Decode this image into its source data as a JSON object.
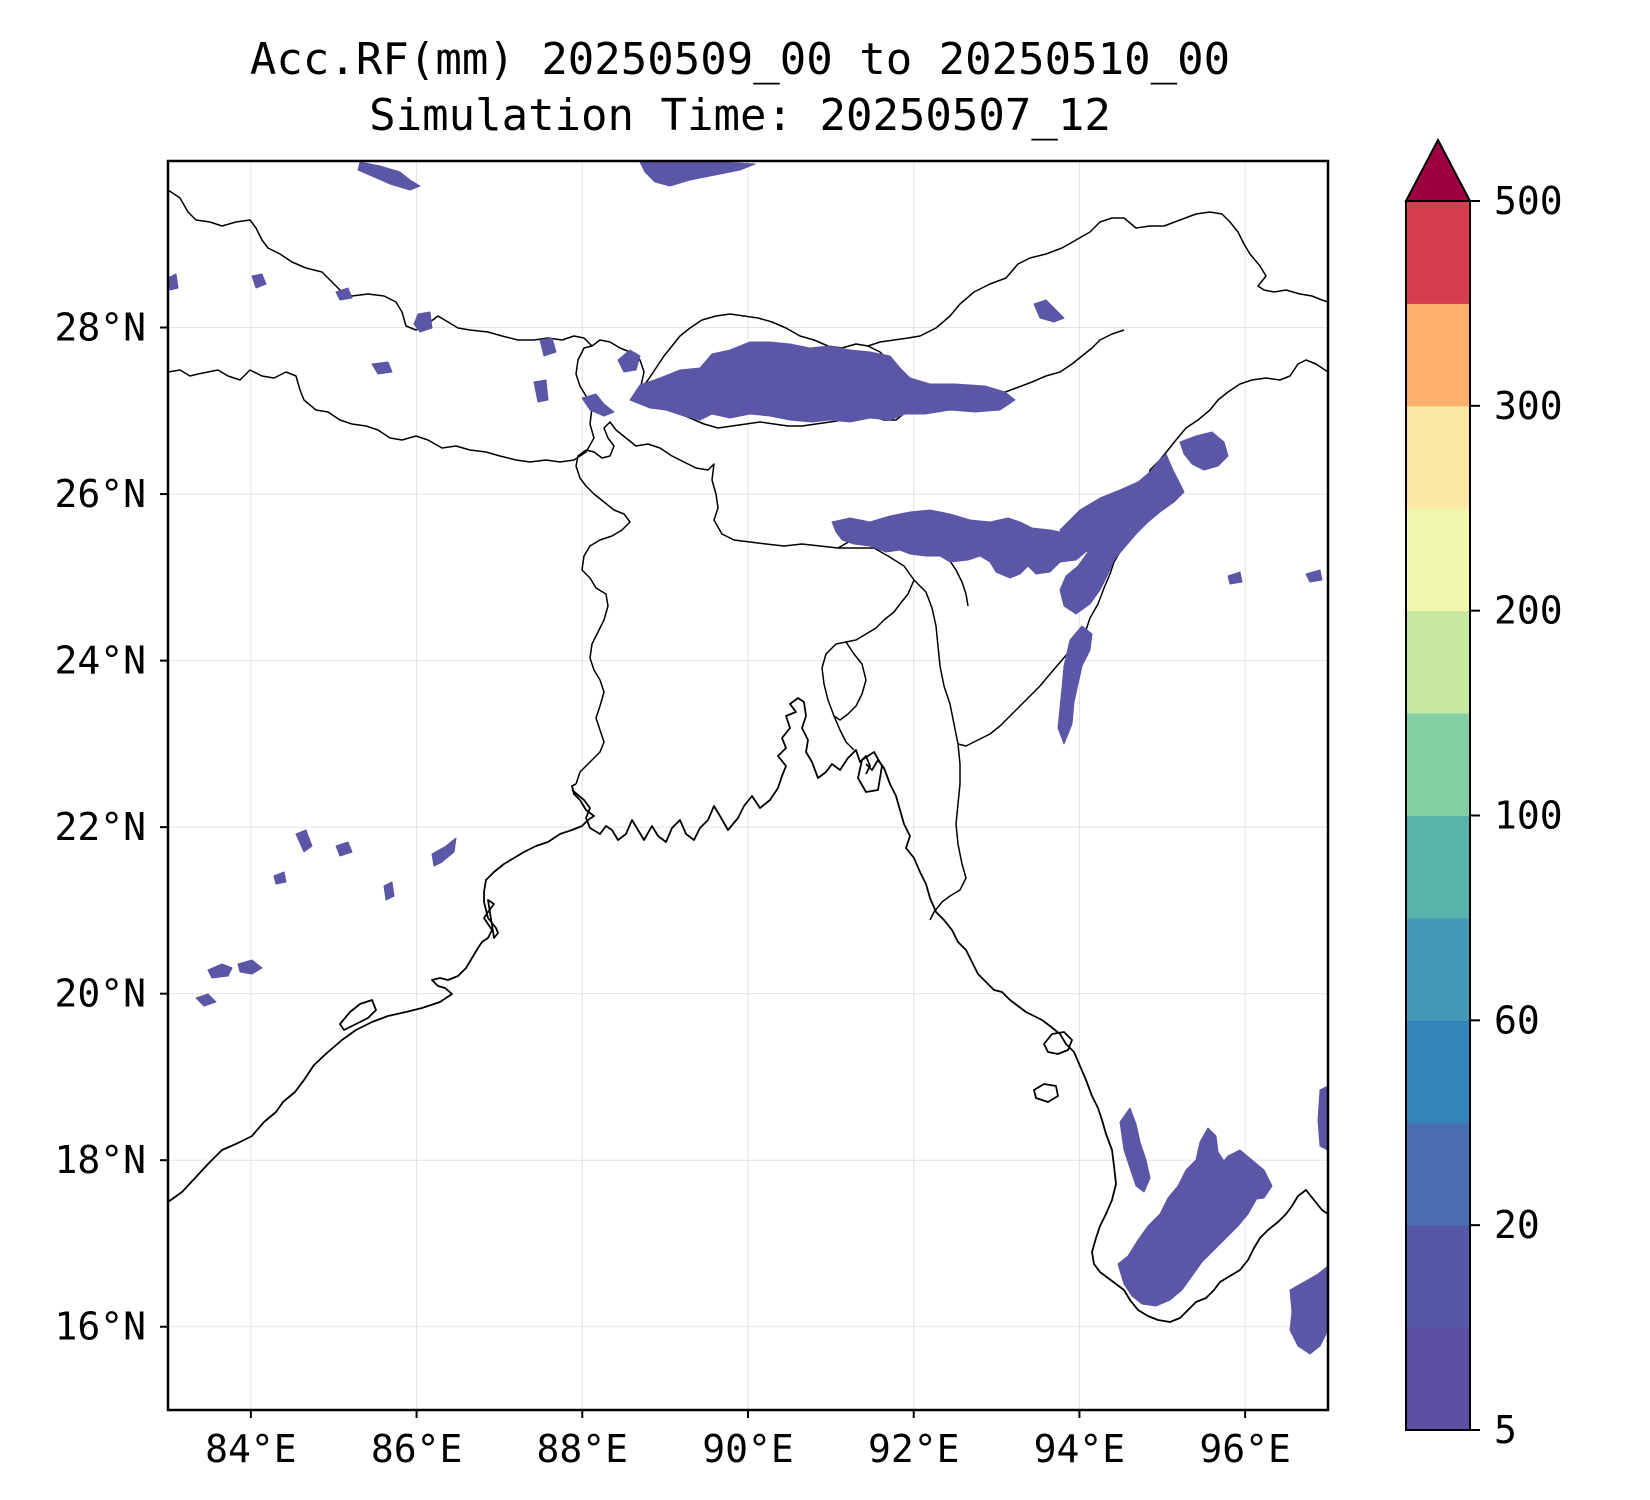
{
  "title": {
    "line1": "Acc.RF(mm) 20250509_00 to 20250510_00",
    "line2": "Simulation Time: 20250507_12"
  },
  "map": {
    "lon_range": [
      83,
      97
    ],
    "lat_range": [
      15,
      30
    ],
    "lon_ticks": [
      {
        "value": 84,
        "label": "84°E"
      },
      {
        "value": 86,
        "label": "86°E"
      },
      {
        "value": 88,
        "label": "88°E"
      },
      {
        "value": 90,
        "label": "90°E"
      },
      {
        "value": 92,
        "label": "92°E"
      },
      {
        "value": 94,
        "label": "94°E"
      },
      {
        "value": 96,
        "label": "96°E"
      }
    ],
    "lat_ticks": [
      {
        "value": 16,
        "label": "16°N"
      },
      {
        "value": 18,
        "label": "18°N"
      },
      {
        "value": 20,
        "label": "20°N"
      },
      {
        "value": 22,
        "label": "22°N"
      },
      {
        "value": 24,
        "label": "24°N"
      },
      {
        "value": 26,
        "label": "26°N"
      },
      {
        "value": 28,
        "label": "28°N"
      }
    ],
    "gridlines": true,
    "rain_color": "#5b56a6"
  },
  "colorbar": {
    "extend": "max",
    "levels": [
      5,
      10,
      20,
      40,
      60,
      80,
      100,
      150,
      200,
      250,
      300,
      400,
      500
    ],
    "colors": [
      "#5e4fa2",
      "#5558a8",
      "#4a6eb0",
      "#3484bb",
      "#4599b6",
      "#59b3aa",
      "#84cfa4",
      "#c6e8a1",
      "#f0f7ad",
      "#fde9a5",
      "#fdb06a",
      "#d53e4f"
    ],
    "extend_color": "#9e0142",
    "tick_labels": [
      {
        "value": 5,
        "label": "5"
      },
      {
        "value": 20,
        "label": "20"
      },
      {
        "value": 60,
        "label": "60"
      },
      {
        "value": 100,
        "label": "100"
      },
      {
        "value": 200,
        "label": "200"
      },
      {
        "value": 300,
        "label": "300"
      },
      {
        "value": 500,
        "label": "500"
      }
    ]
  }
}
